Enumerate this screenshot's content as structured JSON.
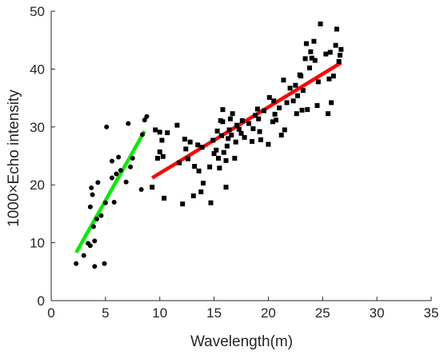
{
  "chart_data": {
    "type": "scatter",
    "xlabel": "Wavelength(m)",
    "ylabel": "1000×Echo intensity",
    "xlim": [
      0,
      35
    ],
    "ylim": [
      0,
      50
    ],
    "xticks": [
      0,
      5,
      10,
      15,
      20,
      25,
      30,
      35
    ],
    "yticks": [
      0,
      10,
      20,
      30,
      40,
      50
    ],
    "grid": false,
    "series": [
      {
        "marker": "circle",
        "color": "#000000",
        "points": [
          [
            2.3,
            6.4
          ],
          [
            3.0,
            7.8
          ],
          [
            3.4,
            9.9
          ],
          [
            3.6,
            9.5
          ],
          [
            3.6,
            16.2
          ],
          [
            3.7,
            19.5
          ],
          [
            3.8,
            18.3
          ],
          [
            3.9,
            12.8
          ],
          [
            4.0,
            10.3
          ],
          [
            4.0,
            5.9
          ],
          [
            4.2,
            14.1
          ],
          [
            4.3,
            20.4
          ],
          [
            4.6,
            14.7
          ],
          [
            4.9,
            6.4
          ],
          [
            5.0,
            16.9
          ],
          [
            5.1,
            30.0
          ],
          [
            5.6,
            21.2
          ],
          [
            5.6,
            24.1
          ],
          [
            5.8,
            17.0
          ],
          [
            6.0,
            21.9
          ],
          [
            6.2,
            24.8
          ],
          [
            6.4,
            22.5
          ],
          [
            6.9,
            20.5
          ],
          [
            7.1,
            30.6
          ],
          [
            7.3,
            23.1
          ],
          [
            7.5,
            24.6
          ],
          [
            8.3,
            19.2
          ],
          [
            8.4,
            28.7
          ],
          [
            8.6,
            31.2
          ],
          [
            8.8,
            31.8
          ]
        ]
      },
      {
        "marker": "square",
        "color": "#000000",
        "points": [
          [
            9.3,
            19.6
          ],
          [
            9.6,
            29.5
          ],
          [
            9.8,
            24.6
          ],
          [
            10.0,
            25.7
          ],
          [
            10.0,
            29.1
          ],
          [
            10.2,
            27.7
          ],
          [
            10.3,
            24.9
          ],
          [
            10.4,
            17.7
          ],
          [
            10.7,
            29.0
          ],
          [
            11.6,
            30.3
          ],
          [
            11.8,
            23.8
          ],
          [
            12.1,
            16.7
          ],
          [
            12.3,
            27.9
          ],
          [
            12.4,
            26.2
          ],
          [
            12.6,
            24.5
          ],
          [
            12.8,
            27.4
          ],
          [
            13.1,
            18.1
          ],
          [
            13.2,
            23.2
          ],
          [
            13.5,
            26.9
          ],
          [
            13.6,
            22.4
          ],
          [
            13.8,
            18.8
          ],
          [
            13.9,
            26.5
          ],
          [
            14.0,
            20.3
          ],
          [
            14.6,
            23.1
          ],
          [
            14.7,
            16.9
          ],
          [
            14.9,
            27.7
          ],
          [
            15.0,
            25.4
          ],
          [
            15.2,
            26.0
          ],
          [
            15.3,
            29.3
          ],
          [
            15.4,
            24.6
          ],
          [
            15.5,
            22.9
          ],
          [
            15.6,
            31.1
          ],
          [
            15.7,
            28.5
          ],
          [
            15.8,
            30.9
          ],
          [
            15.8,
            33.0
          ],
          [
            15.9,
            25.6
          ],
          [
            16.1,
            19.6
          ],
          [
            16.1,
            24.2
          ],
          [
            16.2,
            26.7
          ],
          [
            16.3,
            28.0
          ],
          [
            16.4,
            29.5
          ],
          [
            16.5,
            31.4
          ],
          [
            16.6,
            28.6
          ],
          [
            16.7,
            32.3
          ],
          [
            16.9,
            24.6
          ],
          [
            17.0,
            27.4
          ],
          [
            17.1,
            30.3
          ],
          [
            17.3,
            29.6
          ],
          [
            17.5,
            28.9
          ],
          [
            17.6,
            31.1
          ],
          [
            17.8,
            28.2
          ],
          [
            18.2,
            30.6
          ],
          [
            18.5,
            27.5
          ],
          [
            18.6,
            29.7
          ],
          [
            18.8,
            32.0
          ],
          [
            19.0,
            33.1
          ],
          [
            19.1,
            31.4
          ],
          [
            19.2,
            29.2
          ],
          [
            19.3,
            27.8
          ],
          [
            19.6,
            32.8
          ],
          [
            20.0,
            27.0
          ],
          [
            20.1,
            35.1
          ],
          [
            20.4,
            30.9
          ],
          [
            20.5,
            34.5
          ],
          [
            20.6,
            32.2
          ],
          [
            20.7,
            31.2
          ],
          [
            21.0,
            33.3
          ],
          [
            21.2,
            28.6
          ],
          [
            21.4,
            38.1
          ],
          [
            21.5,
            29.5
          ],
          [
            21.7,
            34.2
          ],
          [
            22.0,
            36.7
          ],
          [
            22.3,
            34.5
          ],
          [
            22.5,
            37.2
          ],
          [
            22.6,
            32.3
          ],
          [
            22.7,
            35.4
          ],
          [
            22.9,
            39.0
          ],
          [
            23.0,
            38.8
          ],
          [
            23.1,
            32.9
          ],
          [
            23.2,
            36.3
          ],
          [
            23.4,
            41.8
          ],
          [
            23.5,
            44.4
          ],
          [
            23.6,
            33.0
          ],
          [
            23.8,
            40.2
          ],
          [
            23.9,
            43.0
          ],
          [
            24.0,
            41.9
          ],
          [
            24.2,
            44.8
          ],
          [
            24.3,
            41.5
          ],
          [
            24.5,
            33.7
          ],
          [
            24.6,
            37.8
          ],
          [
            24.8,
            47.8
          ],
          [
            25.3,
            42.6
          ],
          [
            25.5,
            32.3
          ],
          [
            25.6,
            38.3
          ],
          [
            25.7,
            42.9
          ],
          [
            25.8,
            34.2
          ],
          [
            26.0,
            38.8
          ],
          [
            26.2,
            44.1
          ],
          [
            26.3,
            46.9
          ],
          [
            26.5,
            41.3
          ],
          [
            26.6,
            42.4
          ],
          [
            26.7,
            43.4
          ]
        ]
      }
    ],
    "fit_lines": [
      {
        "color": "#00ee00",
        "x": [
          2.3,
          8.6
        ],
        "y": [
          8.3,
          29.3
        ]
      },
      {
        "color": "#ff0000",
        "x": [
          9.3,
          26.7
        ],
        "y": [
          21.2,
          41.1
        ]
      }
    ]
  }
}
